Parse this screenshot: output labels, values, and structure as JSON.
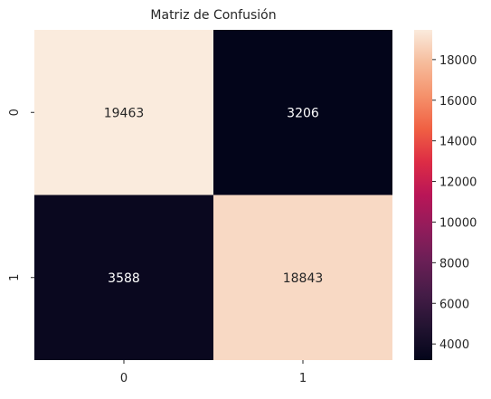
{
  "chart_data": {
    "type": "heatmap",
    "title": "Matriz de Confusión",
    "xlabel": "",
    "ylabel": "",
    "x_categories": [
      "0",
      "1"
    ],
    "y_categories": [
      "0",
      "1"
    ],
    "values": [
      [
        19463,
        3206
      ],
      [
        3588,
        18843
      ]
    ],
    "colormap": "rocket",
    "colorbar": {
      "min": 3206,
      "max": 19463,
      "ticks": [
        4000,
        6000,
        8000,
        10000,
        12000,
        14000,
        16000,
        18000
      ]
    },
    "legend": "colorbar-right",
    "grid": false
  }
}
